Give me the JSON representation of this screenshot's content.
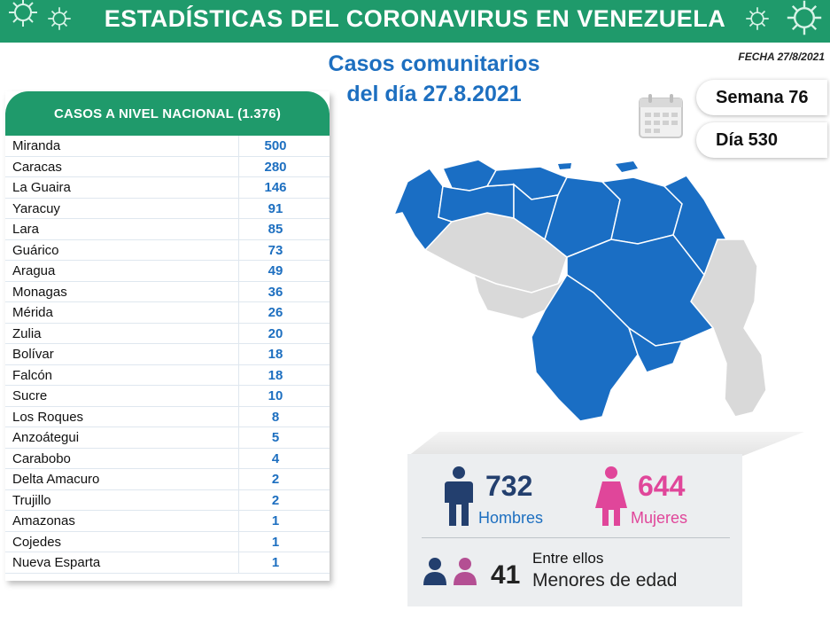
{
  "header": {
    "title": "ESTADÍSTICAS DEL CORONAVIRUS EN VENEZUELA",
    "subtitle_line1": "Casos comunitarios",
    "subtitle_line2": "del día 27.8.2021",
    "fecha": "FECHA 27/8/2021",
    "brand_color": "#1f9a6b",
    "accent_color": "#1d6fc0"
  },
  "calendar": {
    "semana": "Semana 76",
    "dia": "Día 530"
  },
  "table": {
    "title": "CASOS A NIVEL NACIONAL (1.376)",
    "rows": [
      {
        "state": "Miranda",
        "cases": "500"
      },
      {
        "state": "Caracas",
        "cases": "280"
      },
      {
        "state": "La Guaira",
        "cases": "146"
      },
      {
        "state": "Yaracuy",
        "cases": "91"
      },
      {
        "state": "Lara",
        "cases": "85"
      },
      {
        "state": "Guárico",
        "cases": "73"
      },
      {
        "state": "Aragua",
        "cases": "49"
      },
      {
        "state": "Monagas",
        "cases": "36"
      },
      {
        "state": "Mérida",
        "cases": "26"
      },
      {
        "state": "Zulia",
        "cases": "20"
      },
      {
        "state": "Bolívar",
        "cases": "18"
      },
      {
        "state": "Falcón",
        "cases": "18"
      },
      {
        "state": "Sucre",
        "cases": "10"
      },
      {
        "state": "Los Roques",
        "cases": "8"
      },
      {
        "state": "Anzoátegui",
        "cases": "5"
      },
      {
        "state": "Carabobo",
        "cases": "4"
      },
      {
        "state": "Delta Amacuro",
        "cases": "2"
      },
      {
        "state": "Trujillo",
        "cases": "2"
      },
      {
        "state": "Amazonas",
        "cases": "1"
      },
      {
        "state": "Cojedes",
        "cases": "1"
      },
      {
        "state": "Nueva Esparta",
        "cases": "1"
      }
    ]
  },
  "gender": {
    "men_count": "732",
    "men_label": "Hombres",
    "women_count": "644",
    "women_label": "Mujeres",
    "men_color": "#233f6e",
    "women_color": "#e0469a"
  },
  "minors": {
    "intro": "Entre ellos",
    "count": "41",
    "label": "Menores de edad"
  }
}
